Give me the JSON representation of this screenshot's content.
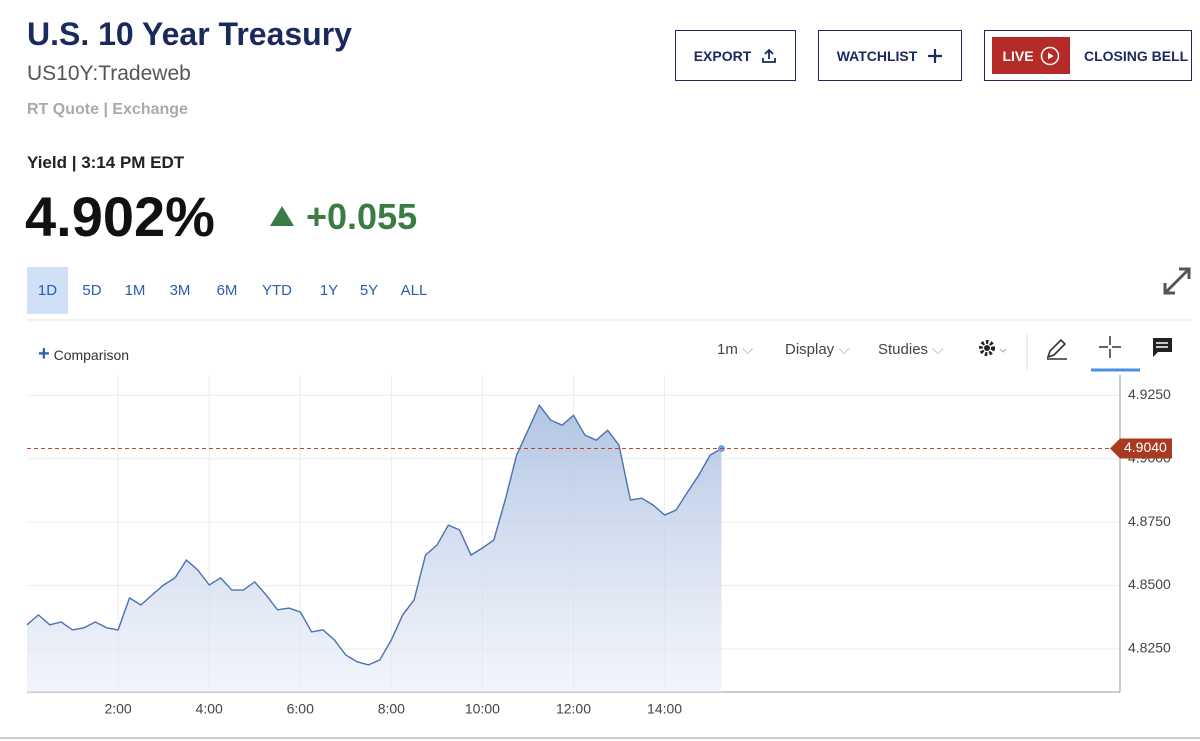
{
  "header": {
    "title": "U.S. 10 Year Treasury",
    "symbol": "US10Y:Tradeweb",
    "source": "RT Quote | Exchange"
  },
  "actions": {
    "export": "EXPORT",
    "watchlist": "WATCHLIST",
    "live_badge": "LIVE",
    "live_label": "CLOSING BELL"
  },
  "quote": {
    "label": "Yield | 3:14 PM EDT",
    "price": "4.902%",
    "change": "+0.055"
  },
  "ranges": [
    "1D",
    "5D",
    "1M",
    "3M",
    "6M",
    "YTD",
    "1Y",
    "5Y",
    "ALL"
  ],
  "toolbar": {
    "comparison": "Comparison",
    "interval": "1m",
    "display": "Display",
    "studies": "Studies"
  },
  "chart_data": {
    "type": "line",
    "color": "#4a72b0",
    "x": [
      0,
      0.25,
      0.5,
      0.75,
      1,
      1.25,
      1.5,
      1.75,
      2,
      2.25,
      2.5,
      2.75,
      3,
      3.25,
      3.5,
      3.75,
      4,
      4.25,
      4.5,
      4.75,
      5,
      5.25,
      5.5,
      5.75,
      6,
      6.25,
      6.5,
      6.75,
      7,
      7.25,
      7.5,
      7.75,
      8,
      8.25,
      8.5,
      8.75,
      9,
      9.25,
      9.5,
      9.75,
      10,
      10.25,
      10.5,
      10.75,
      11,
      11.25,
      11.5,
      11.75,
      12,
      12.25,
      12.5,
      12.75,
      13,
      13.25,
      13.5,
      13.75,
      14,
      14.25,
      14.5,
      14.75,
      15,
      15.25
    ],
    "values": [
      4.8345,
      4.8384,
      4.8345,
      4.8356,
      4.8325,
      4.8333,
      4.8356,
      4.8333,
      4.8325,
      4.8451,
      4.8423,
      4.8463,
      4.8502,
      4.853,
      4.86,
      4.8561,
      4.8502,
      4.853,
      4.8482,
      4.8482,
      4.8514,
      4.8463,
      4.8404,
      4.8411,
      4.8396,
      4.8317,
      4.8325,
      4.8285,
      4.8226,
      4.8199,
      4.8187,
      4.8207,
      4.8285,
      4.8384,
      4.8443,
      4.862,
      4.8659,
      4.8738,
      4.8719,
      4.862,
      4.8648,
      4.8679,
      4.8837,
      4.9014,
      4.9112,
      4.9211,
      4.9152,
      4.9132,
      4.9171,
      4.9093,
      4.9073,
      4.9112,
      4.9053,
      4.8837,
      4.8844,
      4.8817,
      4.8778,
      4.8797,
      4.8868,
      4.8935,
      4.9014,
      4.904
    ],
    "xlim": [
      0,
      24
    ],
    "xticks": [
      {
        "value": 2,
        "label": "2:00"
      },
      {
        "value": 4,
        "label": "4:00"
      },
      {
        "value": 6,
        "label": "6:00"
      },
      {
        "value": 8,
        "label": "8:00"
      },
      {
        "value": 10,
        "label": "10:00"
      },
      {
        "value": 12,
        "label": "12:00"
      },
      {
        "value": 14,
        "label": "14:00"
      }
    ],
    "ylim": [
      4.808,
      4.933
    ],
    "yticks": [
      {
        "value": 4.825,
        "label": "4.8250"
      },
      {
        "value": 4.85,
        "label": "4.8500"
      },
      {
        "value": 4.875,
        "label": "4.8750"
      },
      {
        "value": 4.9,
        "label": "4.9000"
      },
      {
        "value": 4.925,
        "label": "4.9250"
      }
    ],
    "last_value": {
      "value": 4.904,
      "label": "4.9040"
    },
    "grid": true
  }
}
